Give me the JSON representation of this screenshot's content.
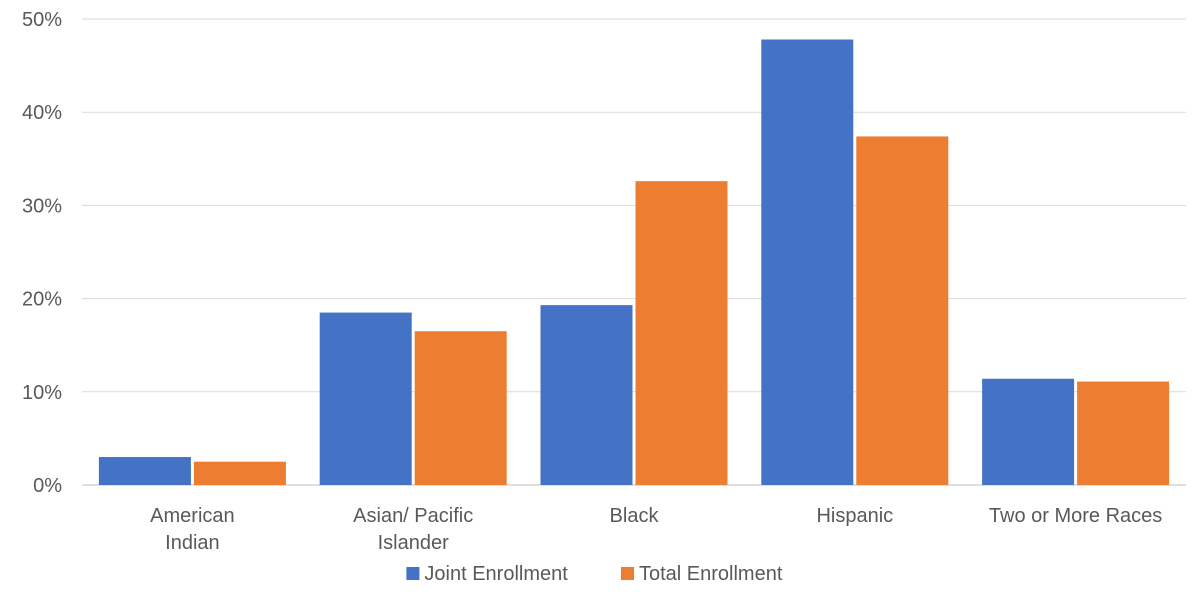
{
  "chart_data": {
    "type": "bar",
    "title": "",
    "xlabel": "",
    "ylabel": "",
    "categories": [
      [
        "American",
        "Indian"
      ],
      [
        "Asian/ Pacific",
        "Islander"
      ],
      [
        "Black"
      ],
      [
        "Hispanic"
      ],
      [
        "Two or More Races"
      ]
    ],
    "series": [
      {
        "name": "Joint Enrollment",
        "color": "#4472C4",
        "values": [
          3.0,
          18.5,
          19.3,
          47.8,
          11.4
        ]
      },
      {
        "name": "Total Enrollment",
        "color": "#ED7D31",
        "values": [
          2.5,
          16.5,
          32.6,
          37.4,
          11.1
        ]
      }
    ],
    "ylim": [
      0,
      50
    ],
    "yticks": [
      "0%",
      "10%",
      "20%",
      "30%",
      "40%",
      "50%"
    ],
    "grid": true,
    "legend_position": "bottom-center"
  }
}
